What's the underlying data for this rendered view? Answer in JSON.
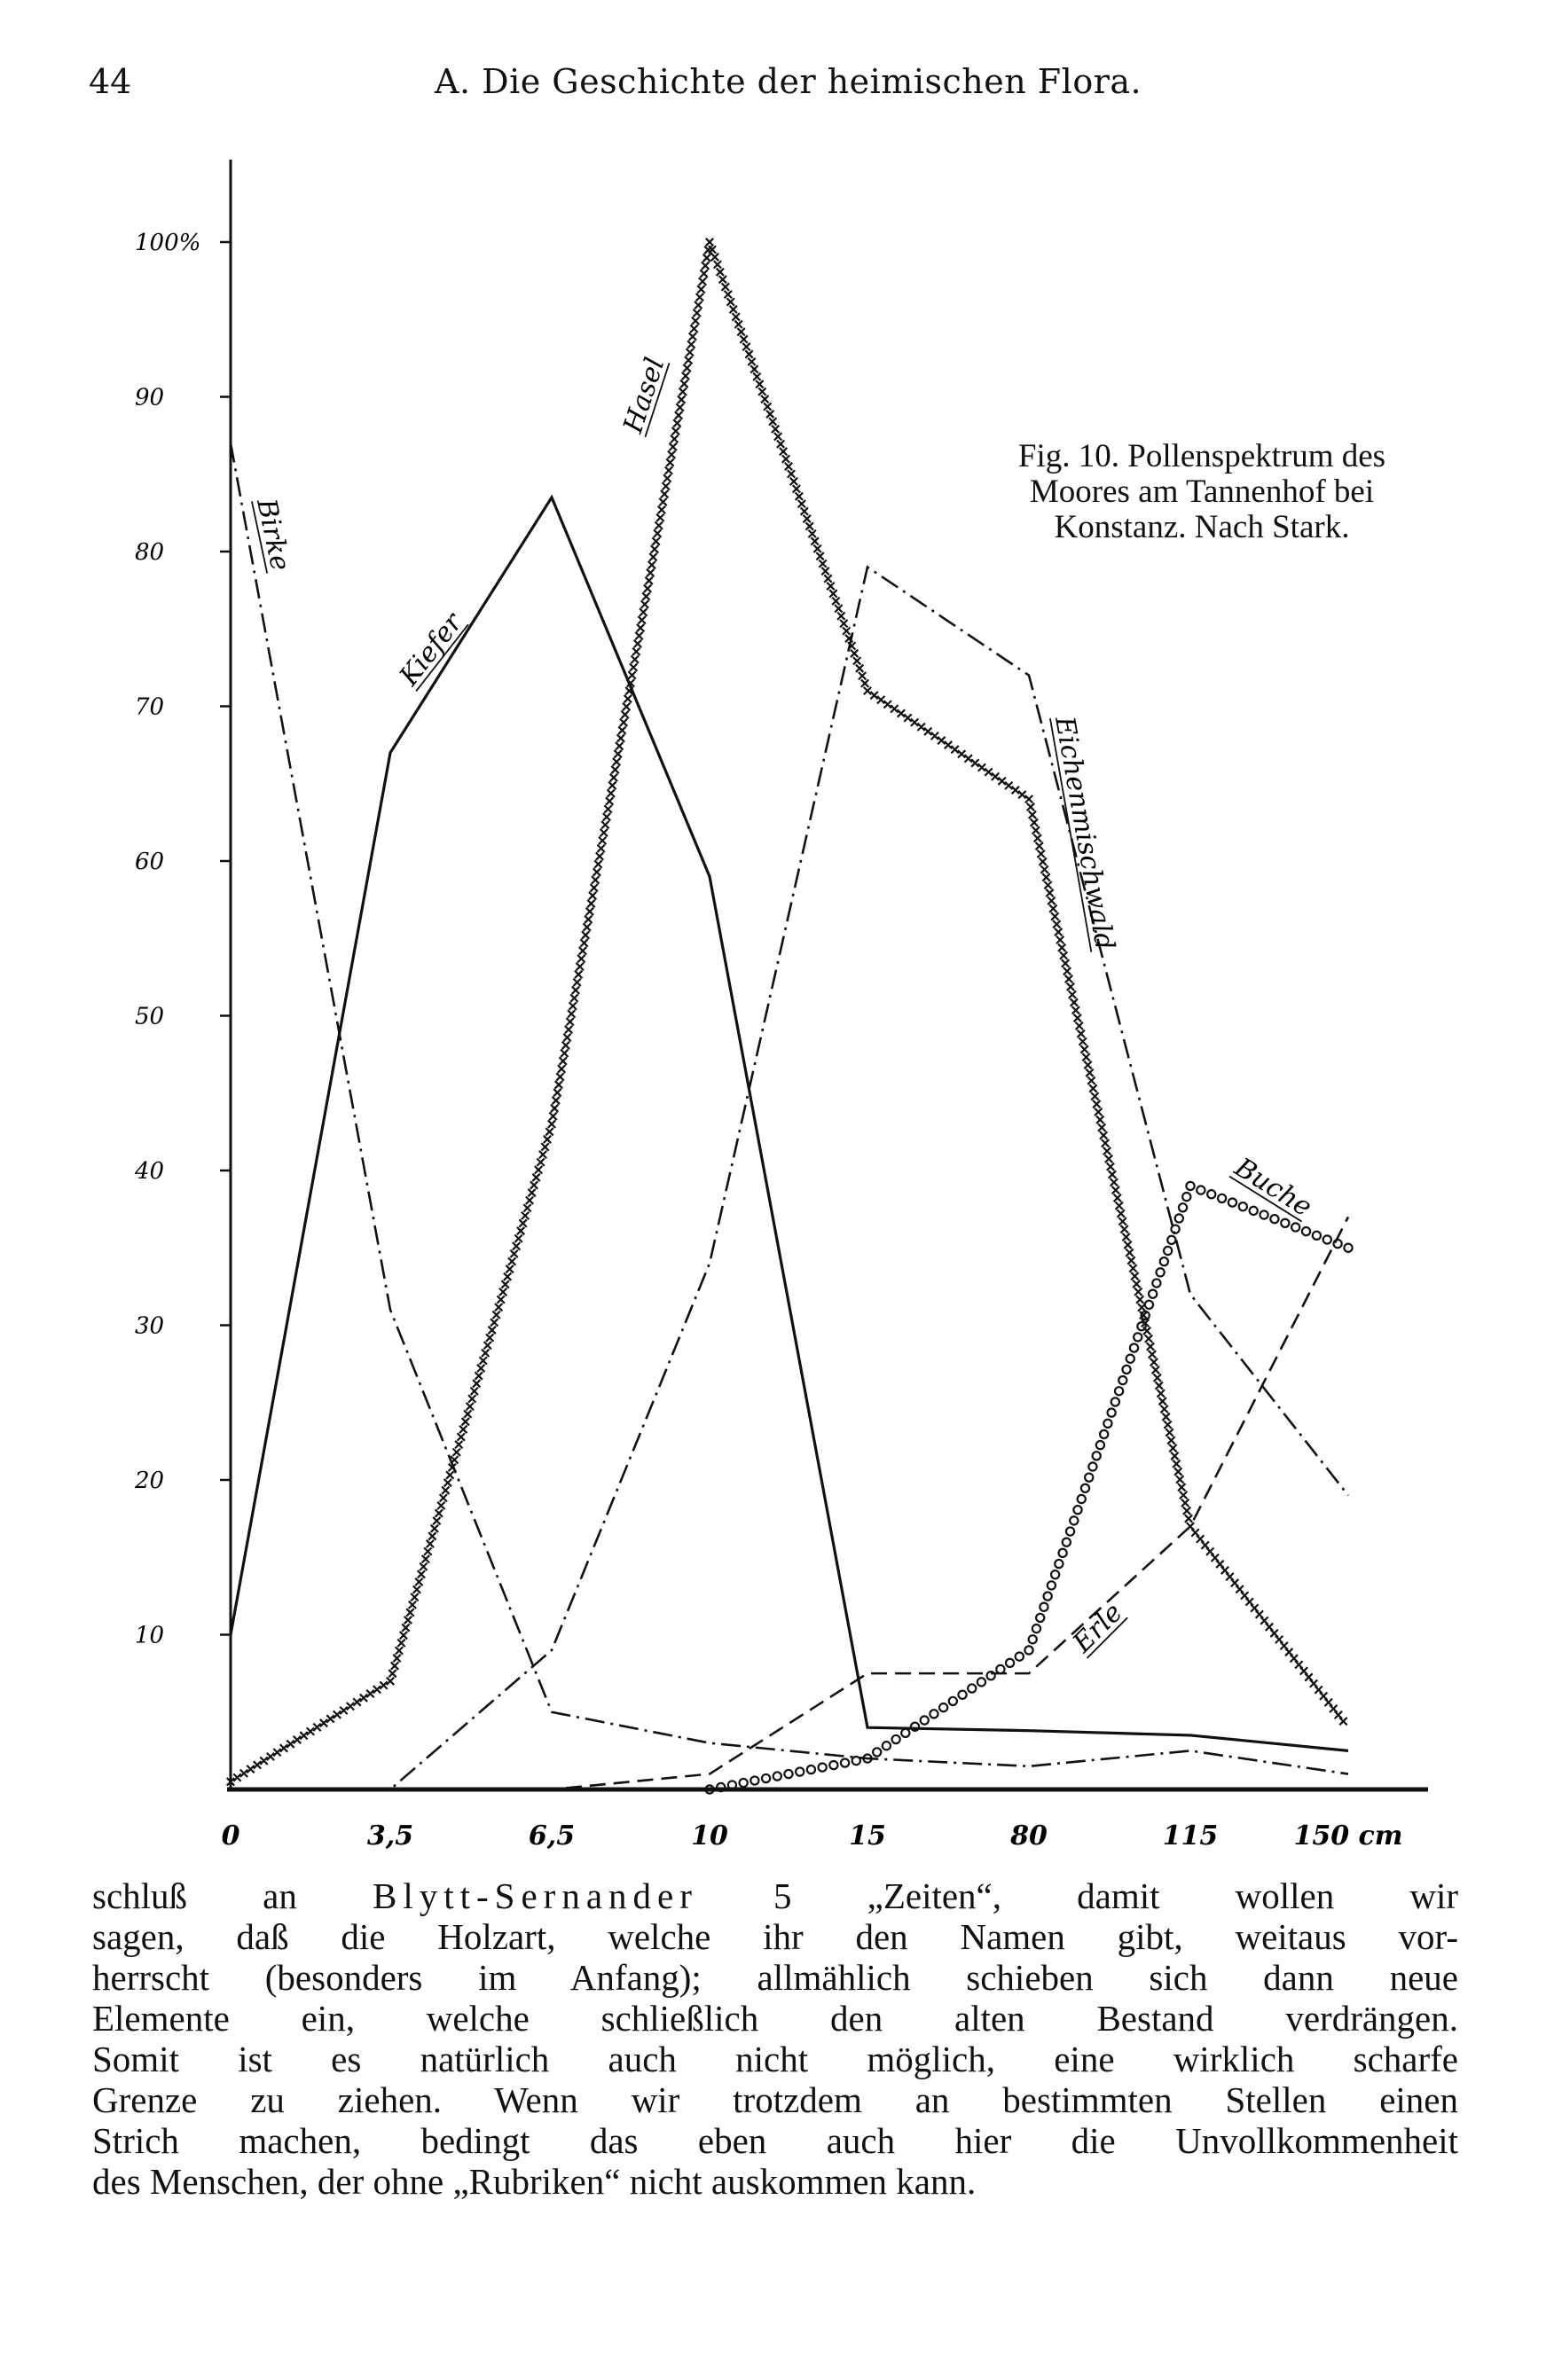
{
  "header": {
    "page_number": "44",
    "running_title": "A. Die Geschichte der heimischen Flora."
  },
  "figure": {
    "caption_lines": [
      "Fig. 10. Pollenspektrum des",
      "Moores am Tannenhof bei",
      "Konstanz. Nach Stark."
    ]
  },
  "chart_data": {
    "type": "line",
    "title": "",
    "xlabel": "",
    "ylabel": "",
    "x": [
      0,
      3.5,
      6.5,
      10,
      15,
      80,
      115,
      150
    ],
    "x_tick_labels": [
      "0",
      "3,5",
      "6,5",
      "10",
      "15",
      "80",
      "115",
      "150 cm"
    ],
    "y_ticks": [
      10,
      20,
      30,
      40,
      50,
      60,
      70,
      80,
      90,
      100
    ],
    "y_tick_labels": [
      "10",
      "20",
      "30",
      "40",
      "50",
      "60",
      "70",
      "80",
      "90",
      "100%"
    ],
    "ylim": [
      0,
      103
    ],
    "grid": false,
    "legend": "labels placed directly on the curves",
    "series": [
      {
        "name": "Birke",
        "style": "dash-dot",
        "values": [
          87,
          31,
          5,
          3,
          2,
          1.5,
          2.5,
          1
        ]
      },
      {
        "name": "Kiefer",
        "style": "solid",
        "values": [
          10,
          67,
          83.5,
          59,
          4,
          3.8,
          3.5,
          2.5
        ]
      },
      {
        "name": "Hasel",
        "style": "crosses",
        "values": [
          0.5,
          7,
          43,
          100,
          71,
          64,
          17,
          4
        ]
      },
      {
        "name": "Eichenmischwald",
        "style": "dash-dot",
        "values": [
          0,
          0,
          9,
          34,
          79,
          72,
          32,
          19
        ]
      },
      {
        "name": "Erle",
        "style": "dashed",
        "values": [
          0,
          0,
          0,
          1,
          7.5,
          7.5,
          17,
          37
        ]
      },
      {
        "name": "Buche",
        "style": "circles",
        "values": [
          0,
          0,
          0,
          0,
          2,
          9,
          39,
          35
        ]
      }
    ]
  },
  "body": {
    "lines": [
      "schluß an %%Blytt-Sernander%% 5 „Zeiten“, damit wollen wir",
      "sagen, daß die Holzart, welche ihr den Namen gibt, weitaus vor-",
      "herrscht (besonders im Anfang); allmählich schieben sich dann neue",
      "Elemente ein, welche schließlich den alten Bestand verdrängen.",
      "Somit ist es natürlich auch nicht möglich, eine wirklich scharfe",
      "Grenze zu ziehen. Wenn wir trotzdem an bestimmten Stellen einen",
      "Strich machen, bedingt das eben auch hier die Unvollkommenheit",
      "des Menschen, der ohne „Rubriken“ nicht auskommen kann."
    ]
  }
}
